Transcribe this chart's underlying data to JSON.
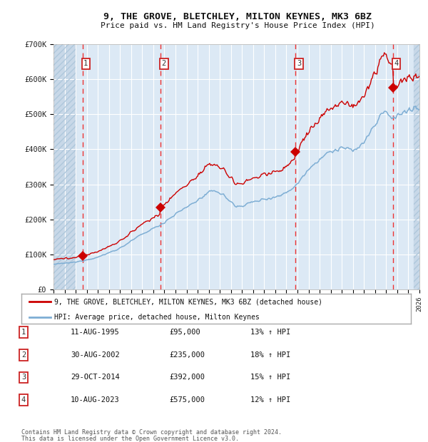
{
  "title": "9, THE GROVE, BLETCHLEY, MILTON KEYNES, MK3 6BZ",
  "subtitle": "Price paid vs. HM Land Registry's House Price Index (HPI)",
  "sale_dates_year": [
    1995.61,
    2002.66,
    2014.83,
    2023.61
  ],
  "sale_prices": [
    95000,
    235000,
    392000,
    575000
  ],
  "sale_labels": [
    "1",
    "2",
    "3",
    "4"
  ],
  "sale_info": [
    [
      "1",
      "11-AUG-1995",
      "£95,000",
      "13% ↑ HPI"
    ],
    [
      "2",
      "30-AUG-2002",
      "£235,000",
      "18% ↑ HPI"
    ],
    [
      "3",
      "29-OCT-2014",
      "£392,000",
      "15% ↑ HPI"
    ],
    [
      "4",
      "10-AUG-2023",
      "£575,000",
      "12% ↑ HPI"
    ]
  ],
  "year_start": 1993,
  "year_end": 2026,
  "ylim": [
    0,
    700000
  ],
  "yticks": [
    0,
    100000,
    200000,
    300000,
    400000,
    500000,
    600000,
    700000
  ],
  "ytick_labels": [
    "£0",
    "£100K",
    "£200K",
    "£300K",
    "£400K",
    "£500K",
    "£600K",
    "£700K"
  ],
  "hpi_line_color": "#7eaed4",
  "price_line_color": "#cc0000",
  "marker_color": "#cc0000",
  "dashed_line_color": "#ee3333",
  "background_color": "#dce9f5",
  "hatch_bg_color": "#c8d8e8",
  "grid_color": "#ffffff",
  "legend_label_price": "9, THE GROVE, BLETCHLEY, MILTON KEYNES, MK3 6BZ (detached house)",
  "legend_label_hpi": "HPI: Average price, detached house, Milton Keynes",
  "footer_line1": "Contains HM Land Registry data © Crown copyright and database right 2024.",
  "footer_line2": "This data is licensed under the Open Government Licence v3.0.",
  "hpi_anchors_x": [
    1993.0,
    1995.0,
    1997.0,
    1999.0,
    2001.0,
    2002.66,
    2004.0,
    2006.0,
    2007.5,
    2008.5,
    2009.5,
    2010.5,
    2012.0,
    2013.5,
    2014.83,
    2016.0,
    2017.5,
    2019.0,
    2020.0,
    2021.0,
    2022.0,
    2022.8,
    2023.5,
    2024.2,
    2025.0,
    2025.8
  ],
  "hpi_anchors_y": [
    72000,
    78000,
    92000,
    118000,
    158000,
    185000,
    215000,
    255000,
    285000,
    265000,
    235000,
    245000,
    258000,
    268000,
    295000,
    345000,
    385000,
    405000,
    395000,
    420000,
    470000,
    510000,
    490000,
    500000,
    510000,
    515000
  ]
}
